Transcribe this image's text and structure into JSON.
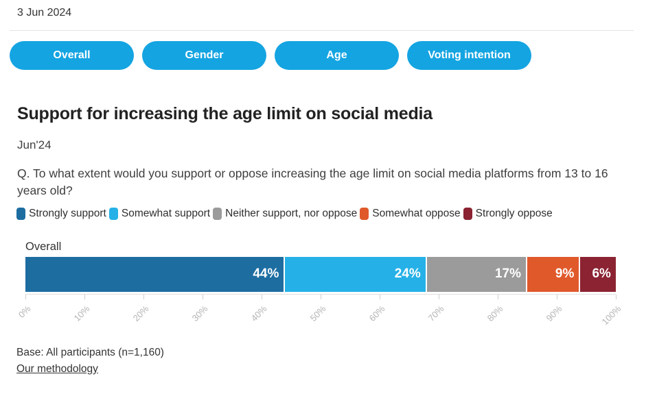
{
  "page": {
    "date": "3 Jun 2024"
  },
  "theme": {
    "accent_blue": "#14a4e2"
  },
  "tabs": [
    {
      "label": "Overall"
    },
    {
      "label": "Gender"
    },
    {
      "label": "Age"
    },
    {
      "label": "Voting intention"
    }
  ],
  "chart_data": {
    "type": "bar",
    "orientation": "horizontal-stacked",
    "title": "Support for increasing the age limit on social media",
    "subtitle": "Jun'24",
    "question": "Q. To what extent would you support or oppose increasing the age limit on social media platforms from 13 to 16 years old?",
    "categories": [
      "Overall"
    ],
    "series": [
      {
        "name": "Strongly support",
        "color": "#1d6da1",
        "values": [
          44
        ]
      },
      {
        "name": "Somewhat support",
        "color": "#25b1e7",
        "values": [
          24
        ]
      },
      {
        "name": "Neither support, nor oppose",
        "color": "#9b9b9b",
        "values": [
          17
        ]
      },
      {
        "name": "Somewhat oppose",
        "color": "#e0592b",
        "values": [
          9
        ]
      },
      {
        "name": "Strongly oppose",
        "color": "#8b2332",
        "values": [
          6
        ]
      }
    ],
    "value_suffix": "%",
    "xlim": [
      0,
      100
    ],
    "x_ticks": [
      "0%",
      "10%",
      "20%",
      "30%",
      "40%",
      "50%",
      "60%",
      "70%",
      "80%",
      "90%",
      "100%"
    ],
    "legend_position": "top",
    "grid": false
  },
  "footer": {
    "base": "Base: All participants (n=1,160)",
    "methodology_label": "Our methodology"
  }
}
